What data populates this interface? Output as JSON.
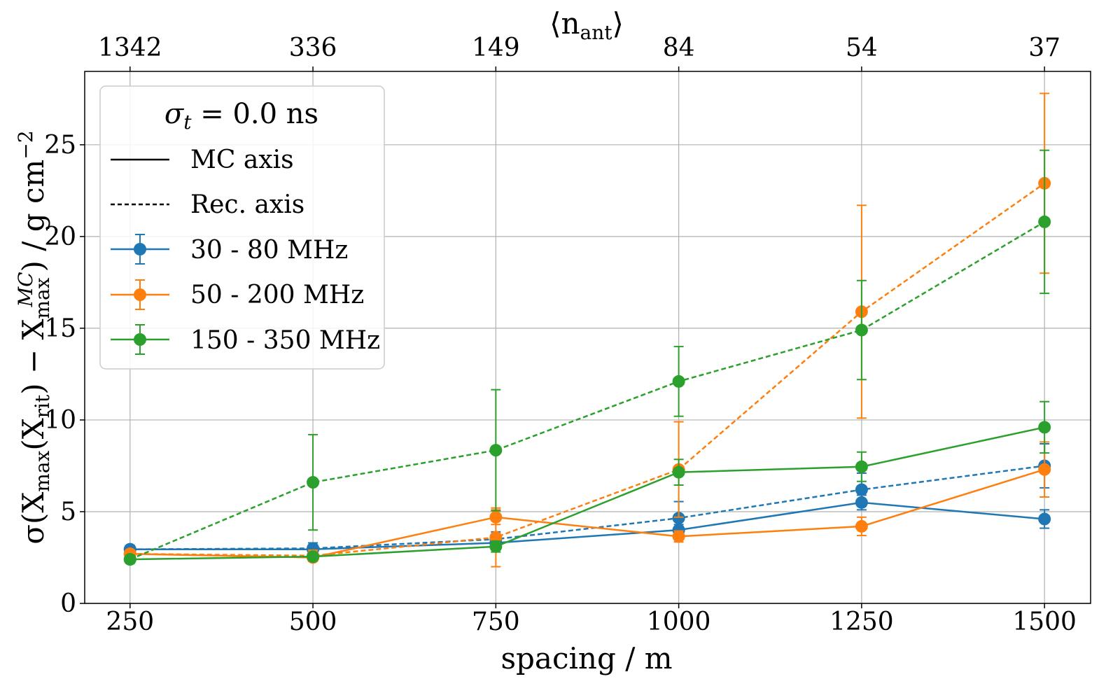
{
  "chart_data": {
    "type": "line",
    "x_label_var": "spacing",
    "x_label_unit": "m",
    "top_axis_label": "⟨n",
    "top_axis_label_sub": "ant",
    "top_axis_label_close": "⟩",
    "y_label_pre": "σ(X",
    "y_label_sub1": "max",
    "y_label_mid": "(X",
    "y_label_sub2": "rit",
    "y_label_mid2": ") − X",
    "y_label_sub3": "max",
    "y_label_sup3": "MC",
    "y_label_post": ") / g cm",
    "y_label_exp": "−2",
    "x": [
      250,
      500,
      750,
      1000,
      1250,
      1500
    ],
    "x_ticks": [
      "250",
      "500",
      "750",
      "1000",
      "1250",
      "1500"
    ],
    "top_ticks": [
      "1342",
      "336",
      "149",
      "84",
      "54",
      "37"
    ],
    "xlim": [
      188,
      1563
    ],
    "ylim": [
      0,
      29
    ],
    "y_ticks": [
      0,
      5,
      10,
      15,
      20,
      25
    ],
    "grid": true,
    "legend": {
      "placement": "top-left",
      "title_sym": "σ",
      "title_sub": "t",
      "title_rest": " = 0.0 ns",
      "line_styles": [
        {
          "label": "MC axis",
          "dash": "solid"
        },
        {
          "label": "Rec. axis",
          "dash": "dashed"
        }
      ],
      "bands": [
        {
          "label": "30 - 80 MHz",
          "color": "#1f77b4"
        },
        {
          "label": "50 - 200 MHz",
          "color": "#ff7f0e"
        },
        {
          "label": "150 - 350 MHz",
          "color": "#2ca02c"
        }
      ]
    },
    "series": [
      {
        "name": "30 - 80 MHz MC axis",
        "color": "#1f77b4",
        "dash": "solid",
        "values": [
          2.95,
          2.95,
          3.3,
          4.0,
          5.5,
          4.6
        ],
        "errors": [
          0.2,
          0.2,
          0.3,
          0.3,
          0.4,
          0.5
        ]
      },
      {
        "name": "30 - 80 MHz Rec. axis",
        "color": "#1f77b4",
        "dash": "dashed",
        "values": [
          2.95,
          3.0,
          3.5,
          4.65,
          6.2,
          7.5
        ],
        "errors": [
          0.2,
          0.3,
          0.4,
          0.9,
          0.9,
          1.2
        ]
      },
      {
        "name": "50 - 200 MHz MC axis",
        "color": "#ff7f0e",
        "dash": "solid",
        "values": [
          2.7,
          2.5,
          4.7,
          3.65,
          4.2,
          7.3
        ],
        "errors": [
          0.2,
          0.2,
          0.4,
          0.3,
          0.5,
          1.5
        ]
      },
      {
        "name": "50 - 200 MHz Rec. axis",
        "color": "#ff7f0e",
        "dash": "dashed",
        "values": [
          2.7,
          2.6,
          3.6,
          7.3,
          15.9,
          22.9
        ],
        "errors": [
          0.2,
          0.3,
          1.6,
          2.6,
          5.8,
          4.9
        ]
      },
      {
        "name": "150 - 350 MHz MC axis",
        "color": "#2ca02c",
        "dash": "solid",
        "values": [
          2.4,
          2.55,
          3.1,
          7.15,
          7.45,
          9.6
        ],
        "errors": [
          0.2,
          0.2,
          0.3,
          0.7,
          0.8,
          1.4
        ]
      },
      {
        "name": "150 - 350 MHz Rec. axis",
        "color": "#2ca02c",
        "dash": "dashed",
        "values": [
          2.4,
          6.6,
          8.35,
          12.1,
          14.9,
          20.8
        ],
        "errors": [
          0.2,
          2.6,
          3.3,
          1.9,
          2.7,
          3.9
        ]
      }
    ]
  }
}
